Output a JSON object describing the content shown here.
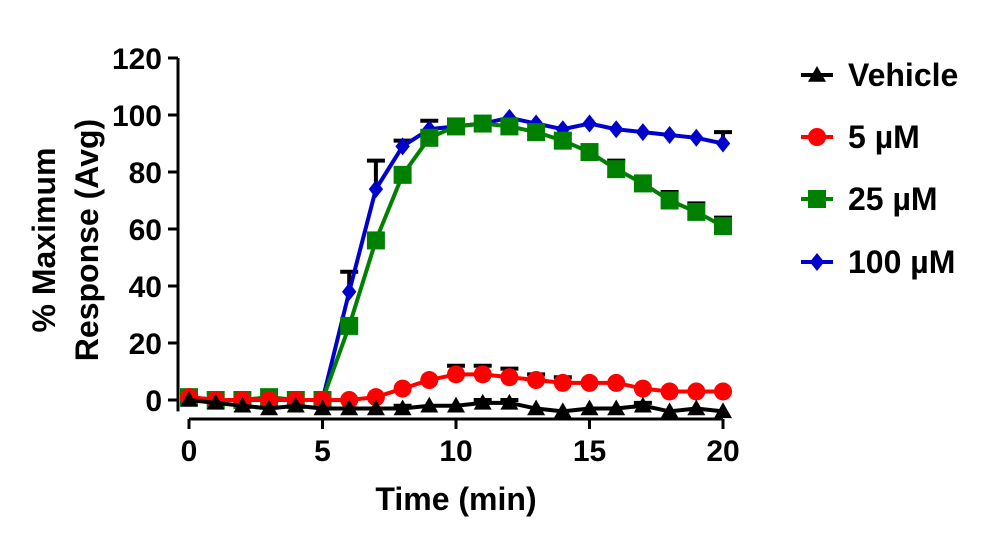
{
  "chart_data": {
    "type": "line",
    "title": "",
    "xlabel": "Time (min)",
    "ylabel_lines": [
      "% Maximum",
      "Response (Avg)"
    ],
    "xlim": [
      0,
      20
    ],
    "ylim": [
      -4,
      120
    ],
    "x_ticks": [
      0,
      5,
      10,
      15,
      20
    ],
    "y_ticks": [
      0,
      20,
      40,
      60,
      80,
      100,
      120
    ],
    "x_tick_labels": [
      "0",
      "5",
      "10",
      "15",
      "20"
    ],
    "y_tick_labels": [
      "0",
      "20",
      "40",
      "60",
      "80",
      "100",
      "120"
    ],
    "grid": false,
    "legend_position": "right",
    "x": [
      0,
      1,
      2,
      3,
      4,
      5,
      6,
      7,
      8,
      9,
      10,
      11,
      12,
      13,
      14,
      15,
      16,
      17,
      18,
      19,
      20
    ],
    "series": [
      {
        "name": "Vehicle",
        "color": "#000000",
        "marker": "triangle",
        "values": [
          0,
          -1,
          -2,
          -3,
          -2,
          -3,
          -3,
          -3,
          -3,
          -2,
          -2,
          -1,
          -1,
          -3,
          -4,
          -3,
          -3,
          -2,
          -4,
          -3,
          -4
        ],
        "errors": [
          0,
          0,
          0,
          0,
          0,
          0,
          0,
          0,
          1,
          0,
          0,
          1,
          1,
          0,
          0,
          0,
          0,
          1,
          0,
          0,
          0
        ]
      },
      {
        "name": "5 µM",
        "color": "#ff0000",
        "marker": "circle",
        "values": [
          1,
          0,
          0,
          0,
          0,
          0,
          0,
          1,
          4,
          7,
          9,
          9,
          8,
          7,
          6,
          6,
          6,
          4,
          3,
          3,
          3
        ],
        "errors": [
          0,
          0,
          0,
          0,
          0,
          0,
          0,
          0,
          0,
          0,
          3,
          3,
          3,
          2,
          2,
          0,
          0,
          0,
          0,
          0,
          0
        ]
      },
      {
        "name": "25 µM",
        "color": "#008000",
        "marker": "square",
        "values": [
          1,
          0,
          0,
          1,
          0,
          0,
          26,
          56,
          79,
          92,
          96,
          97,
          96,
          94,
          91,
          87,
          81,
          76,
          70,
          66,
          61
        ],
        "errors": [
          0,
          0,
          0,
          0,
          0,
          0,
          0,
          0,
          0,
          0,
          0,
          0,
          0,
          0,
          0,
          0,
          3,
          0,
          3,
          3,
          3
        ]
      },
      {
        "name": "100 µM",
        "color": "#0000cc",
        "marker": "diamond",
        "values": [
          1,
          0,
          0,
          0,
          0,
          0,
          38,
          74,
          89,
          95,
          96,
          97,
          99,
          97,
          95,
          97,
          95,
          94,
          93,
          92,
          90
        ],
        "errors": [
          0,
          0,
          0,
          0,
          0,
          0,
          7,
          10,
          2,
          3,
          0,
          0,
          0,
          0,
          0,
          0,
          0,
          0,
          0,
          0,
          4
        ]
      }
    ]
  }
}
